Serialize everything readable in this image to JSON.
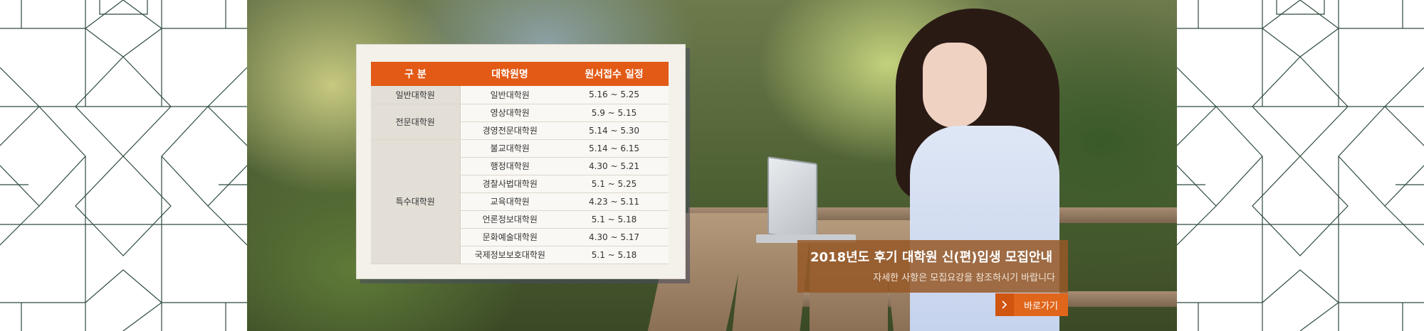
{
  "schedule_table": {
    "headers": [
      "구 분",
      "대학원명",
      "원서접수 일정"
    ],
    "groups": [
      {
        "label": "일반대학원",
        "rows": [
          {
            "school": "일반대학원",
            "dates": "5.16 ~ 5.25"
          }
        ]
      },
      {
        "label": "전문대학원",
        "rows": [
          {
            "school": "영상대학원",
            "dates": "5.9 ~ 5.15"
          },
          {
            "school": "경영전문대학원",
            "dates": "5.14 ~ 5.30"
          }
        ]
      },
      {
        "label": "특수대학원",
        "rows": [
          {
            "school": "불교대학원",
            "dates": "5.14 ~ 6.15"
          },
          {
            "school": "행정대학원",
            "dates": "4.30 ~ 5.21"
          },
          {
            "school": "경찰사법대학원",
            "dates": "5.1 ~ 5.25"
          },
          {
            "school": "교육대학원",
            "dates": "4.23 ~ 5.11"
          },
          {
            "school": "언론정보대학원",
            "dates": "5.1 ~ 5.18"
          },
          {
            "school": "문화예술대학원",
            "dates": "4.30 ~ 5.17"
          },
          {
            "school": "국제정보보호대학원",
            "dates": "5.1 ~ 5.18"
          }
        ]
      }
    ]
  },
  "notice": {
    "title": "2018년도 후기 대학원 신(편)입생 모집안내",
    "subtitle": "자세한 사항은 모집요강을 참조하시기 바랍니다",
    "button_label": "바로가기",
    "button_icon": "chevron-right-icon"
  },
  "colors": {
    "table_header": "#e25a16",
    "notice_background": "#96582b",
    "button": "#e0661c",
    "pattern_line": "#2e4a3c"
  }
}
